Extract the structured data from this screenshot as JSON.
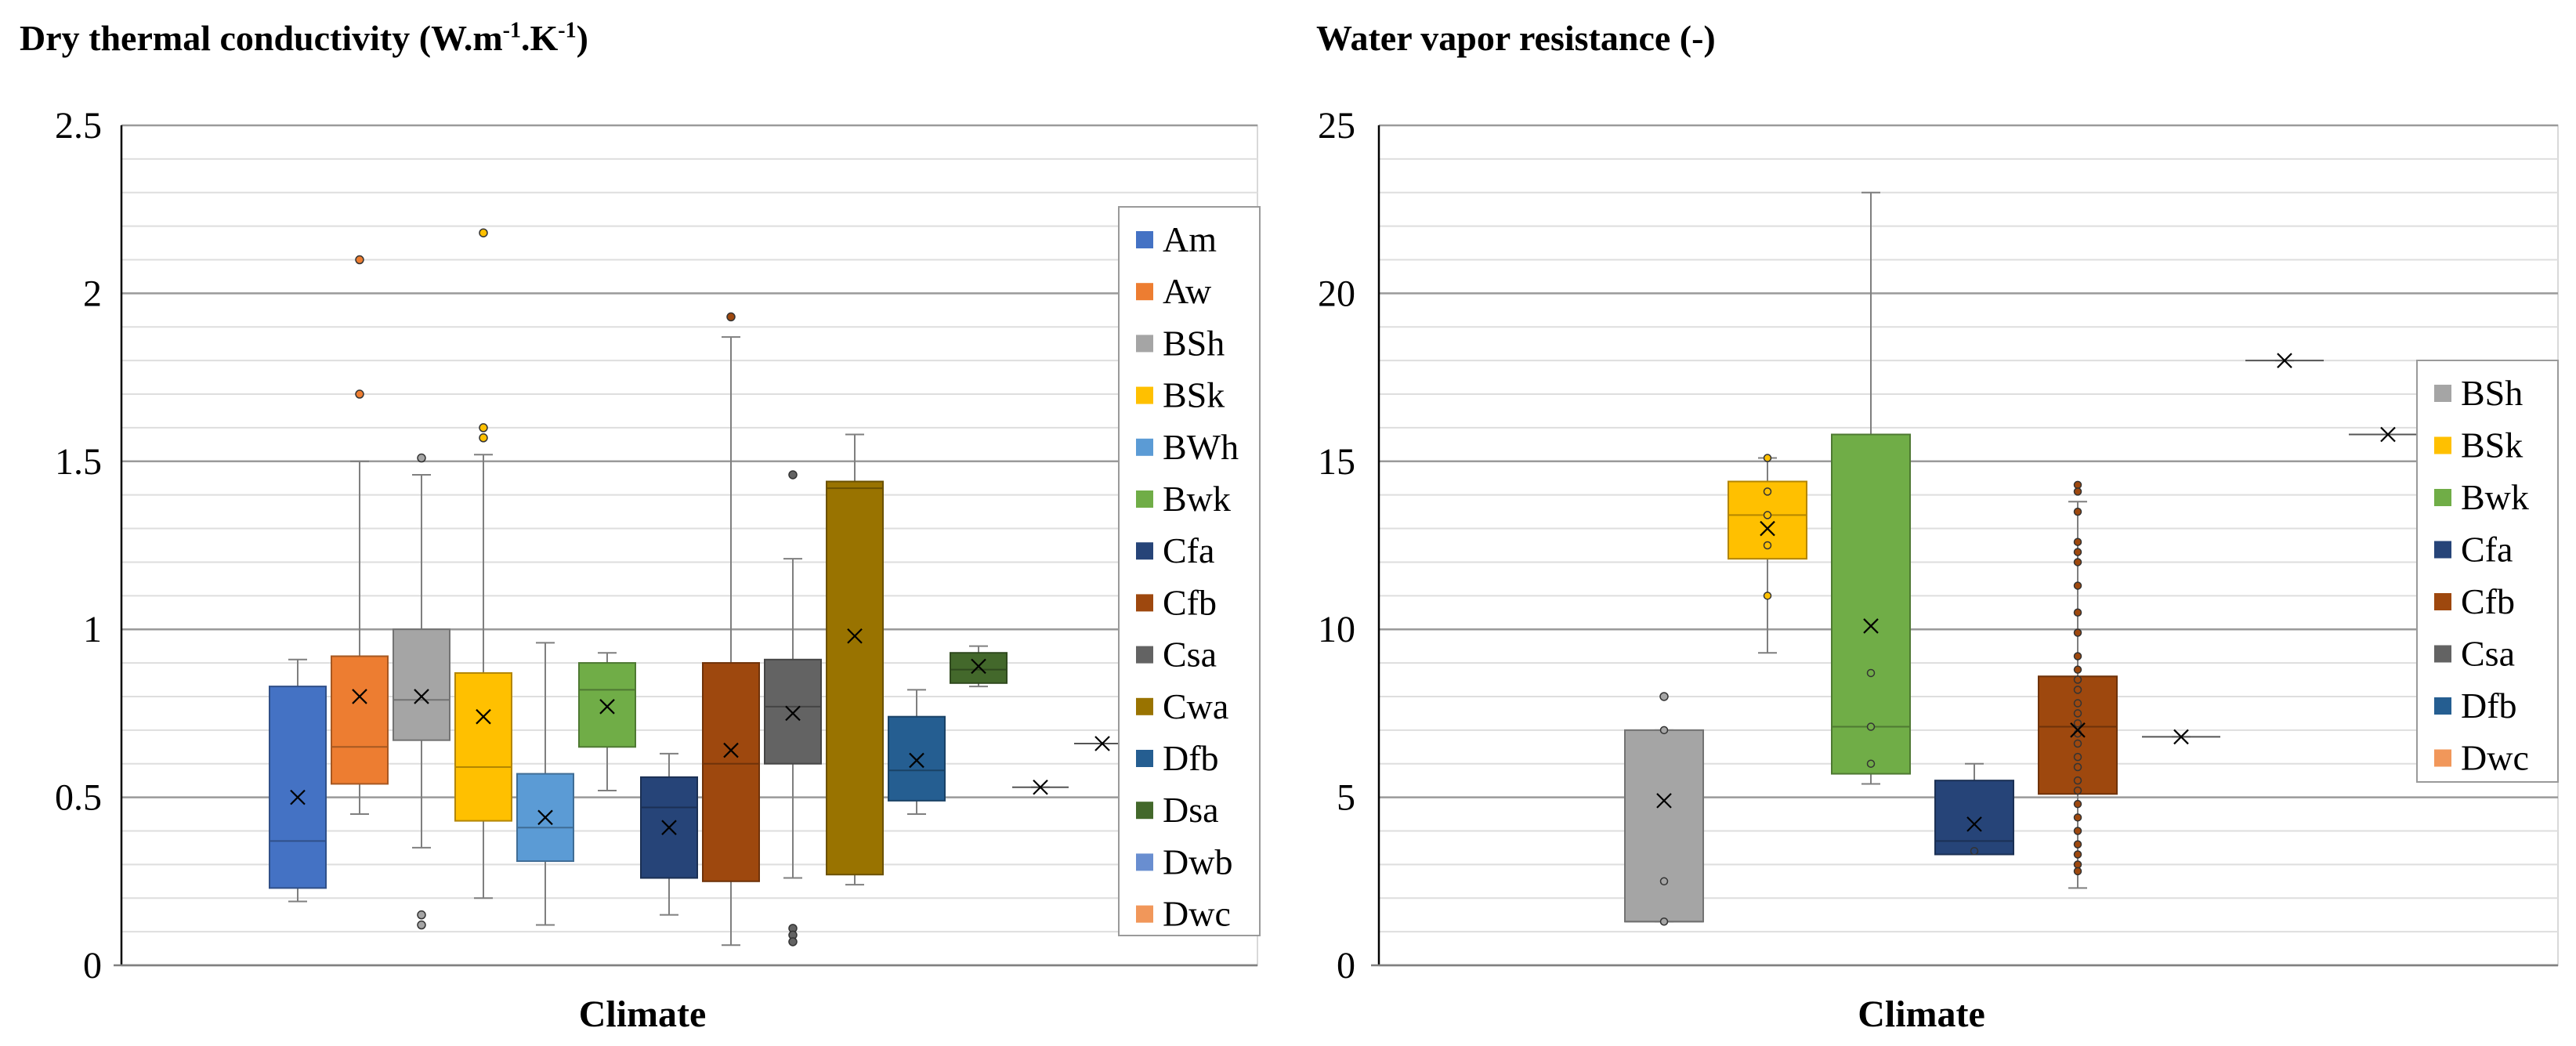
{
  "chart_data": [
    {
      "type": "box",
      "title": "Dry thermal conductivity (W.m-1.K-1)",
      "title_main": "Dry thermal conductivity (W.m",
      "title_sup1": "-1",
      "title_mid": ".K",
      "title_sup2": "-1",
      "title_end": ")",
      "xlabel": "Climate",
      "ylabel": "",
      "ylim": [
        0,
        2.5
      ],
      "major_step": 0.5,
      "minor_step": 0.1,
      "y_ticks": [
        "0",
        "0.5",
        "1",
        "1.5",
        "2",
        "2.5"
      ],
      "legend_position": "right",
      "series": [
        {
          "name": "Am",
          "color": "#4472C4",
          "min": 0.19,
          "q1": 0.23,
          "median": 0.37,
          "q3": 0.83,
          "max": 0.91,
          "mean": 0.5,
          "outliers": []
        },
        {
          "name": "Aw",
          "color": "#ED7D31",
          "min": 0.45,
          "q1": 0.54,
          "median": 0.65,
          "q3": 0.92,
          "max": 1.5,
          "mean": 0.8,
          "outliers": [
            2.1,
            1.7
          ]
        },
        {
          "name": "BSh",
          "color": "#A5A5A5",
          "min": 0.35,
          "q1": 0.67,
          "median": 0.79,
          "q3": 1.0,
          "max": 1.46,
          "mean": 0.8,
          "outliers": [
            1.51,
            0.15,
            0.12
          ]
        },
        {
          "name": "BSk",
          "color": "#FFC000",
          "min": 0.2,
          "q1": 0.43,
          "median": 0.59,
          "q3": 0.87,
          "max": 1.52,
          "mean": 0.74,
          "outliers": [
            2.18,
            1.6,
            1.57
          ]
        },
        {
          "name": "BWh",
          "color": "#5B9BD5",
          "min": 0.12,
          "q1": 0.31,
          "median": 0.41,
          "q3": 0.57,
          "max": 0.96,
          "mean": 0.44,
          "outliers": []
        },
        {
          "name": "Bwk",
          "color": "#70AD47",
          "min": 0.52,
          "q1": 0.65,
          "median": 0.82,
          "q3": 0.9,
          "max": 0.93,
          "mean": 0.77,
          "outliers": []
        },
        {
          "name": "Cfa",
          "color": "#264478",
          "min": 0.15,
          "q1": 0.26,
          "median": 0.47,
          "q3": 0.56,
          "max": 0.63,
          "mean": 0.41,
          "outliers": []
        },
        {
          "name": "Cfb",
          "color": "#9E480E",
          "min": 0.06,
          "q1": 0.25,
          "median": 0.6,
          "q3": 0.9,
          "max": 1.87,
          "mean": 0.64,
          "outliers": [
            1.93
          ]
        },
        {
          "name": "Csa",
          "color": "#636363",
          "min": 0.26,
          "q1": 0.6,
          "median": 0.77,
          "q3": 0.91,
          "max": 1.21,
          "mean": 0.75,
          "outliers": [
            1.46,
            0.11,
            0.09,
            0.07
          ]
        },
        {
          "name": "Cwa",
          "color": "#997300",
          "min": 0.24,
          "q1": 0.27,
          "median": 1.42,
          "q3": 1.44,
          "max": 1.58,
          "mean": 0.98,
          "outliers": []
        },
        {
          "name": "Dfb",
          "color": "#255E91",
          "min": 0.45,
          "q1": 0.49,
          "median": 0.58,
          "q3": 0.74,
          "max": 0.82,
          "mean": 0.61,
          "outliers": []
        },
        {
          "name": "Dsa",
          "color": "#43682B",
          "min": 0.83,
          "q1": 0.84,
          "median": 0.88,
          "q3": 0.93,
          "max": 0.95,
          "mean": 0.89,
          "outliers": []
        },
        {
          "name": "Dwb",
          "color": "#698ED0",
          "min": 0.53,
          "q1": 0.53,
          "median": 0.53,
          "q3": 0.53,
          "max": 0.53,
          "mean": 0.53,
          "outliers": []
        },
        {
          "name": "Dwc",
          "color": "#F1975A",
          "min": 0.66,
          "q1": 0.66,
          "median": 0.66,
          "q3": 0.66,
          "max": 0.66,
          "mean": 0.66,
          "outliers": []
        }
      ]
    },
    {
      "type": "box",
      "title": "Water vapor resistance (-)",
      "xlabel": "Climate",
      "ylabel": "",
      "ylim": [
        0,
        25
      ],
      "major_step": 5,
      "minor_step": 1,
      "y_ticks": [
        "0",
        "5",
        "10",
        "15",
        "20",
        "25"
      ],
      "legend_position": "right",
      "series": [
        {
          "name": "BSh",
          "color": "#A5A5A5",
          "min": 1.3,
          "q1": 1.3,
          "median": 1.3,
          "q3": 7.0,
          "max": 7.0,
          "mean": 4.9,
          "points": [
            7.0,
            2.5,
            1.3
          ],
          "outliers": [
            8.0
          ]
        },
        {
          "name": "BSk",
          "color": "#FFC000",
          "min": 9.3,
          "q1": 12.1,
          "median": 13.4,
          "q3": 14.4,
          "max": 15.1,
          "mean": 13.0,
          "points": [
            15.1,
            14.1,
            13.4,
            12.5,
            11.0
          ],
          "outliers": []
        },
        {
          "name": "Bwk",
          "color": "#70AD47",
          "min": 5.4,
          "q1": 5.7,
          "median": 7.1,
          "q3": 15.8,
          "max": 23.0,
          "mean": 10.1,
          "points": [
            8.7,
            7.1,
            6.0
          ],
          "outliers": []
        },
        {
          "name": "Cfa",
          "color": "#264478",
          "min": 3.3,
          "q1": 3.3,
          "median": 3.7,
          "q3": 5.5,
          "max": 6.0,
          "mean": 4.2,
          "points": [
            3.4
          ],
          "outliers": []
        },
        {
          "name": "Cfb",
          "color": "#9E480E",
          "min": 2.3,
          "q1": 5.1,
          "median": 7.1,
          "q3": 8.6,
          "max": 13.8,
          "mean": 7.0,
          "points": [
            14.3,
            14.1,
            13.5,
            12.6,
            12.3,
            12.0,
            11.3,
            10.5,
            9.9,
            9.2,
            8.8,
            8.5,
            8.2,
            7.8,
            7.5,
            7.2,
            6.9,
            6.6,
            6.2,
            5.9,
            5.5,
            5.2,
            4.8,
            4.4,
            4.0,
            3.6,
            3.3,
            3.0,
            2.8
          ],
          "outliers": []
        },
        {
          "name": "Csa",
          "color": "#636363",
          "min": 6.8,
          "q1": 6.8,
          "median": 6.8,
          "q3": 6.8,
          "max": 6.8,
          "mean": 6.8,
          "points": [],
          "outliers": []
        },
        {
          "name": "Dfb",
          "color": "#255E91",
          "min": 18.0,
          "q1": 18.0,
          "median": 18.0,
          "q3": 18.0,
          "max": 18.0,
          "mean": 18.0,
          "points": [],
          "outliers": []
        },
        {
          "name": "Dwc",
          "color": "#F1975A",
          "min": 15.8,
          "q1": 15.8,
          "median": 15.8,
          "q3": 15.8,
          "max": 15.8,
          "mean": 15.8,
          "points": [],
          "outliers": []
        }
      ]
    }
  ]
}
